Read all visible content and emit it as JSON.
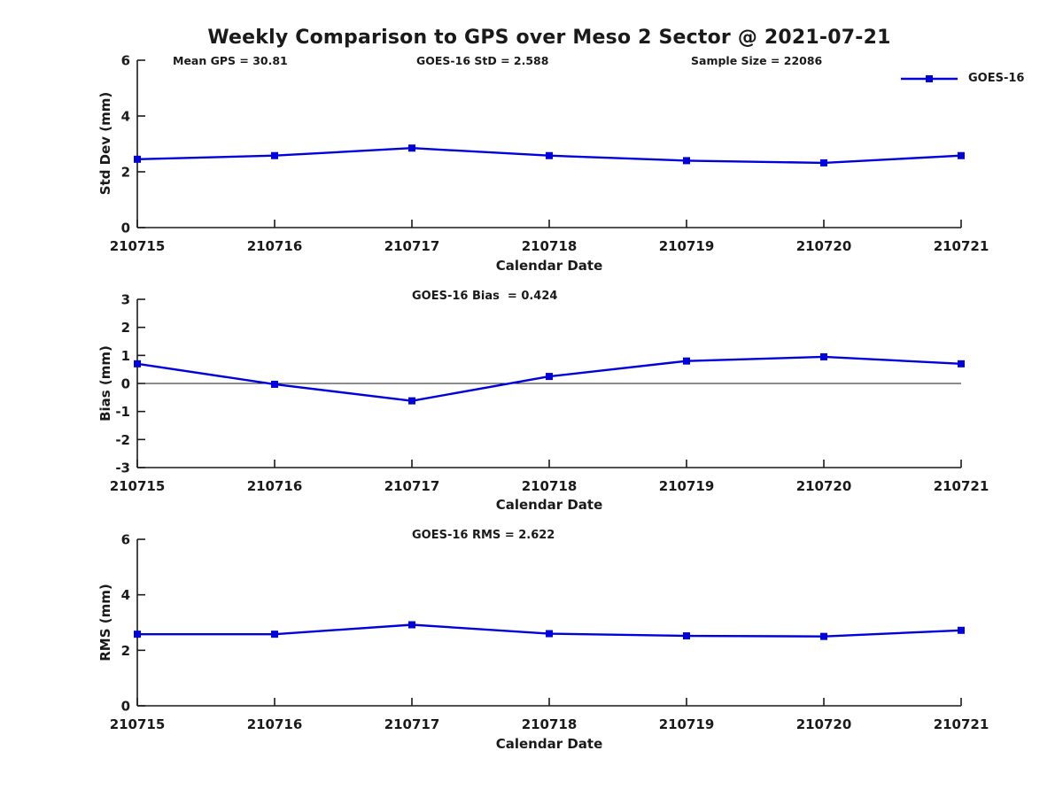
{
  "figure": {
    "title": "Weekly Comparison to GPS over Meso 2 Sector @ 2021-07-21",
    "background_color": "#ffffff",
    "text_color": "#1a1a1a",
    "axis_color": "#1a1a1a",
    "series_color": "#0000dd",
    "legend_label": "GOES-16"
  },
  "annotations": {
    "mean_gps": "Mean GPS = 30.81",
    "goes_std": "GOES-16 StD = 2.588",
    "sample_size": "Sample Size = 22086"
  },
  "chart_data": [
    {
      "type": "line",
      "title": "",
      "xlabel": "Calendar Date",
      "ylabel": "Std Dev (mm)",
      "categories": [
        "210715",
        "210716",
        "210717",
        "210718",
        "210719",
        "210720",
        "210721"
      ],
      "series": [
        {
          "name": "GOES-16",
          "marker": "square",
          "values": [
            2.45,
            2.58,
            2.85,
            2.58,
            2.4,
            2.32,
            2.58
          ]
        }
      ],
      "ylim": [
        0,
        6
      ],
      "yticks": [
        0,
        2,
        4,
        6
      ],
      "grid": false,
      "zero_line": false,
      "legend_position": "upper right"
    },
    {
      "type": "line",
      "title": "GOES-16 Bias  = 0.424",
      "xlabel": "Calendar Date",
      "ylabel": "Bias (mm)",
      "categories": [
        "210715",
        "210716",
        "210717",
        "210718",
        "210719",
        "210720",
        "210721"
      ],
      "series": [
        {
          "name": "GOES-16",
          "marker": "square",
          "values": [
            0.7,
            -0.03,
            -0.62,
            0.25,
            0.8,
            0.95,
            0.7
          ]
        }
      ],
      "ylim": [
        -3,
        3
      ],
      "yticks": [
        -3,
        -2,
        -1,
        0,
        1,
        2,
        3
      ],
      "grid": false,
      "zero_line": true,
      "legend_position": "none"
    },
    {
      "type": "line",
      "title": "GOES-16 RMS = 2.622",
      "xlabel": "Calendar Date",
      "ylabel": "RMS (mm)",
      "categories": [
        "210715",
        "210716",
        "210717",
        "210718",
        "210719",
        "210720",
        "210721"
      ],
      "series": [
        {
          "name": "GOES-16",
          "marker": "square",
          "values": [
            2.58,
            2.58,
            2.92,
            2.6,
            2.52,
            2.5,
            2.72
          ]
        }
      ],
      "ylim": [
        0,
        6
      ],
      "yticks": [
        0,
        2,
        4,
        6
      ],
      "grid": false,
      "zero_line": false,
      "legend_position": "none"
    }
  ]
}
